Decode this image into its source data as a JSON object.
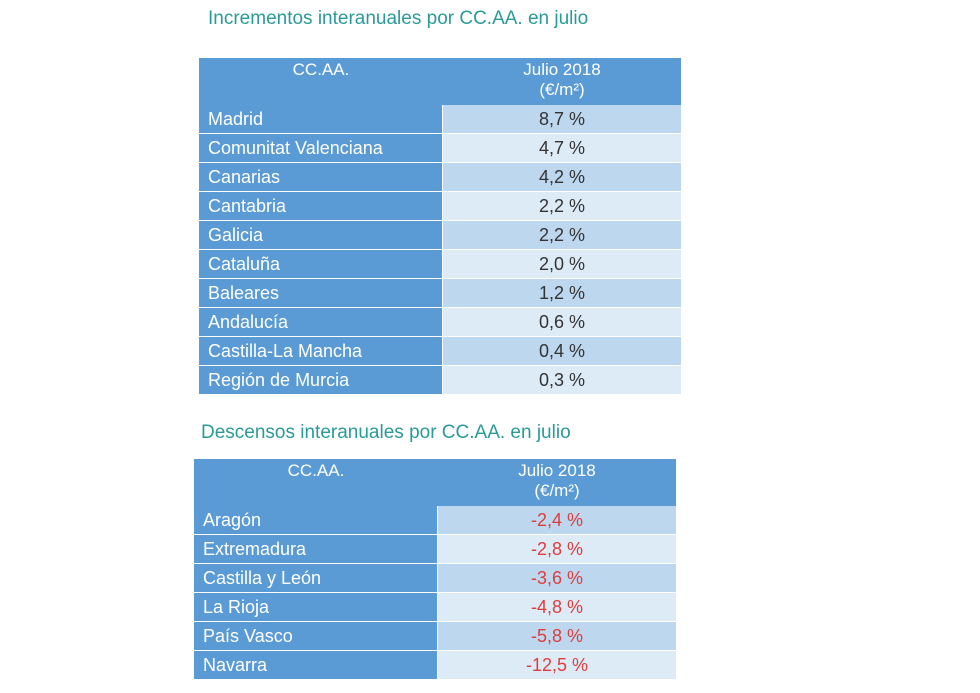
{
  "tables": [
    {
      "title": "Incrementos interanuales por CC.AA. en julio",
      "columns": [
        {
          "label": "CC.AA."
        },
        {
          "label": "Julio 2018",
          "unit": "(€/m²)"
        }
      ],
      "rows": [
        [
          "Madrid",
          "8,7 %"
        ],
        [
          "Comunitat Valenciana",
          "4,7 %"
        ],
        [
          "Canarias",
          "4,2 %"
        ],
        [
          "Cantabria",
          "2,2 %"
        ],
        [
          "Galicia",
          "2,2 %"
        ],
        [
          "Cataluña",
          "2,0 %"
        ],
        [
          "Baleares",
          "1,2 %"
        ],
        [
          "Andalucía",
          "0,6 %"
        ],
        [
          "Castilla-La Mancha",
          "0,4 %"
        ],
        [
          "Región de Murcia",
          "0,3 %"
        ]
      ]
    },
    {
      "title": "Descensos interanuales por CC.AA. en julio",
      "columns": [
        {
          "label": "CC.AA."
        },
        {
          "label": "Julio 2018",
          "unit": "(€/m²)"
        }
      ],
      "rows": [
        [
          "Aragón",
          "-2,4 %"
        ],
        [
          "Extremadura",
          "-2,8 %"
        ],
        [
          "Castilla y León",
          "-3,6 %"
        ],
        [
          "La Rioja",
          "-4,8 %"
        ],
        [
          "País Vasco",
          "-5,8 %"
        ],
        [
          "Navarra",
          "-12,5 %"
        ]
      ]
    }
  ]
}
